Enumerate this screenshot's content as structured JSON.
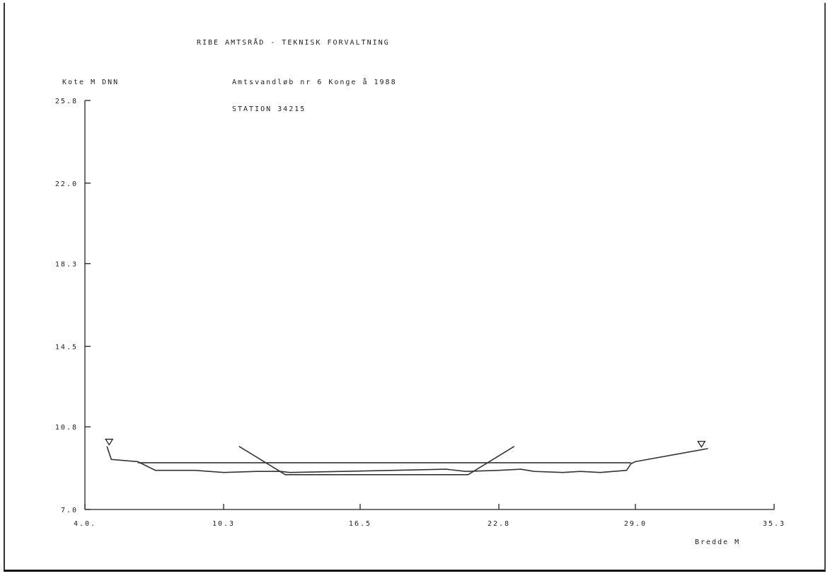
{
  "header": {
    "title": "RIBE AMTSRÅD - TEKNISK FORVALTNING",
    "subtitle": "Amtsvandløb nr 6 Konge å 1988",
    "station": "STATION 34215"
  },
  "chart_data": {
    "type": "line",
    "title": "RIBE AMTSRÅD - TEKNISK FORVALTNING",
    "ylabel": "Kote M DNN",
    "xlabel": "Bredde M",
    "xlim": [
      4.0,
      35.3
    ],
    "ylim": [
      7.0,
      25.8
    ],
    "xticks": [
      4.0,
      10.3,
      16.5,
      22.8,
      29.0,
      35.3
    ],
    "xtick_labels": [
      "4.0.",
      "10.3",
      "16.5",
      "22.8",
      "29.0",
      "35.3"
    ],
    "yticks": [
      7.0,
      10.8,
      14.5,
      18.3,
      22.0,
      25.8
    ],
    "ytick_labels": [
      "7.0",
      "10.8",
      "14.5",
      "18.3",
      "22.0",
      "25.8"
    ],
    "grid": false,
    "water_level_markers": [
      {
        "x": 5.1,
        "y": 10.1
      },
      {
        "x": 32.0,
        "y": 10.0
      }
    ],
    "series": [
      {
        "points": [
          [
            5.0,
            9.9
          ],
          [
            5.2,
            9.3
          ],
          [
            6.4,
            9.2
          ],
          [
            6.8,
            9.0
          ],
          [
            7.2,
            8.8
          ],
          [
            9.0,
            8.8
          ],
          [
            10.3,
            8.7
          ],
          [
            11.8,
            8.75
          ],
          [
            12.9,
            8.75
          ],
          [
            13.3,
            8.7
          ],
          [
            18.0,
            8.8
          ],
          [
            20.4,
            8.85
          ],
          [
            21.3,
            8.75
          ],
          [
            22.8,
            8.8
          ],
          [
            23.8,
            8.85
          ],
          [
            24.4,
            8.75
          ],
          [
            25.7,
            8.7
          ],
          [
            26.5,
            8.75
          ],
          [
            27.4,
            8.7
          ],
          [
            28.6,
            8.8
          ],
          [
            28.8,
            9.1
          ],
          [
            29.0,
            9.2
          ],
          [
            32.3,
            9.8
          ]
        ]
      },
      {
        "points": [
          [
            6.4,
            9.15
          ],
          [
            28.8,
            9.15
          ]
        ]
      },
      {
        "points": [
          [
            11.0,
            9.9
          ],
          [
            13.1,
            8.6
          ],
          [
            21.4,
            8.6
          ],
          [
            23.5,
            9.9
          ]
        ]
      }
    ]
  }
}
